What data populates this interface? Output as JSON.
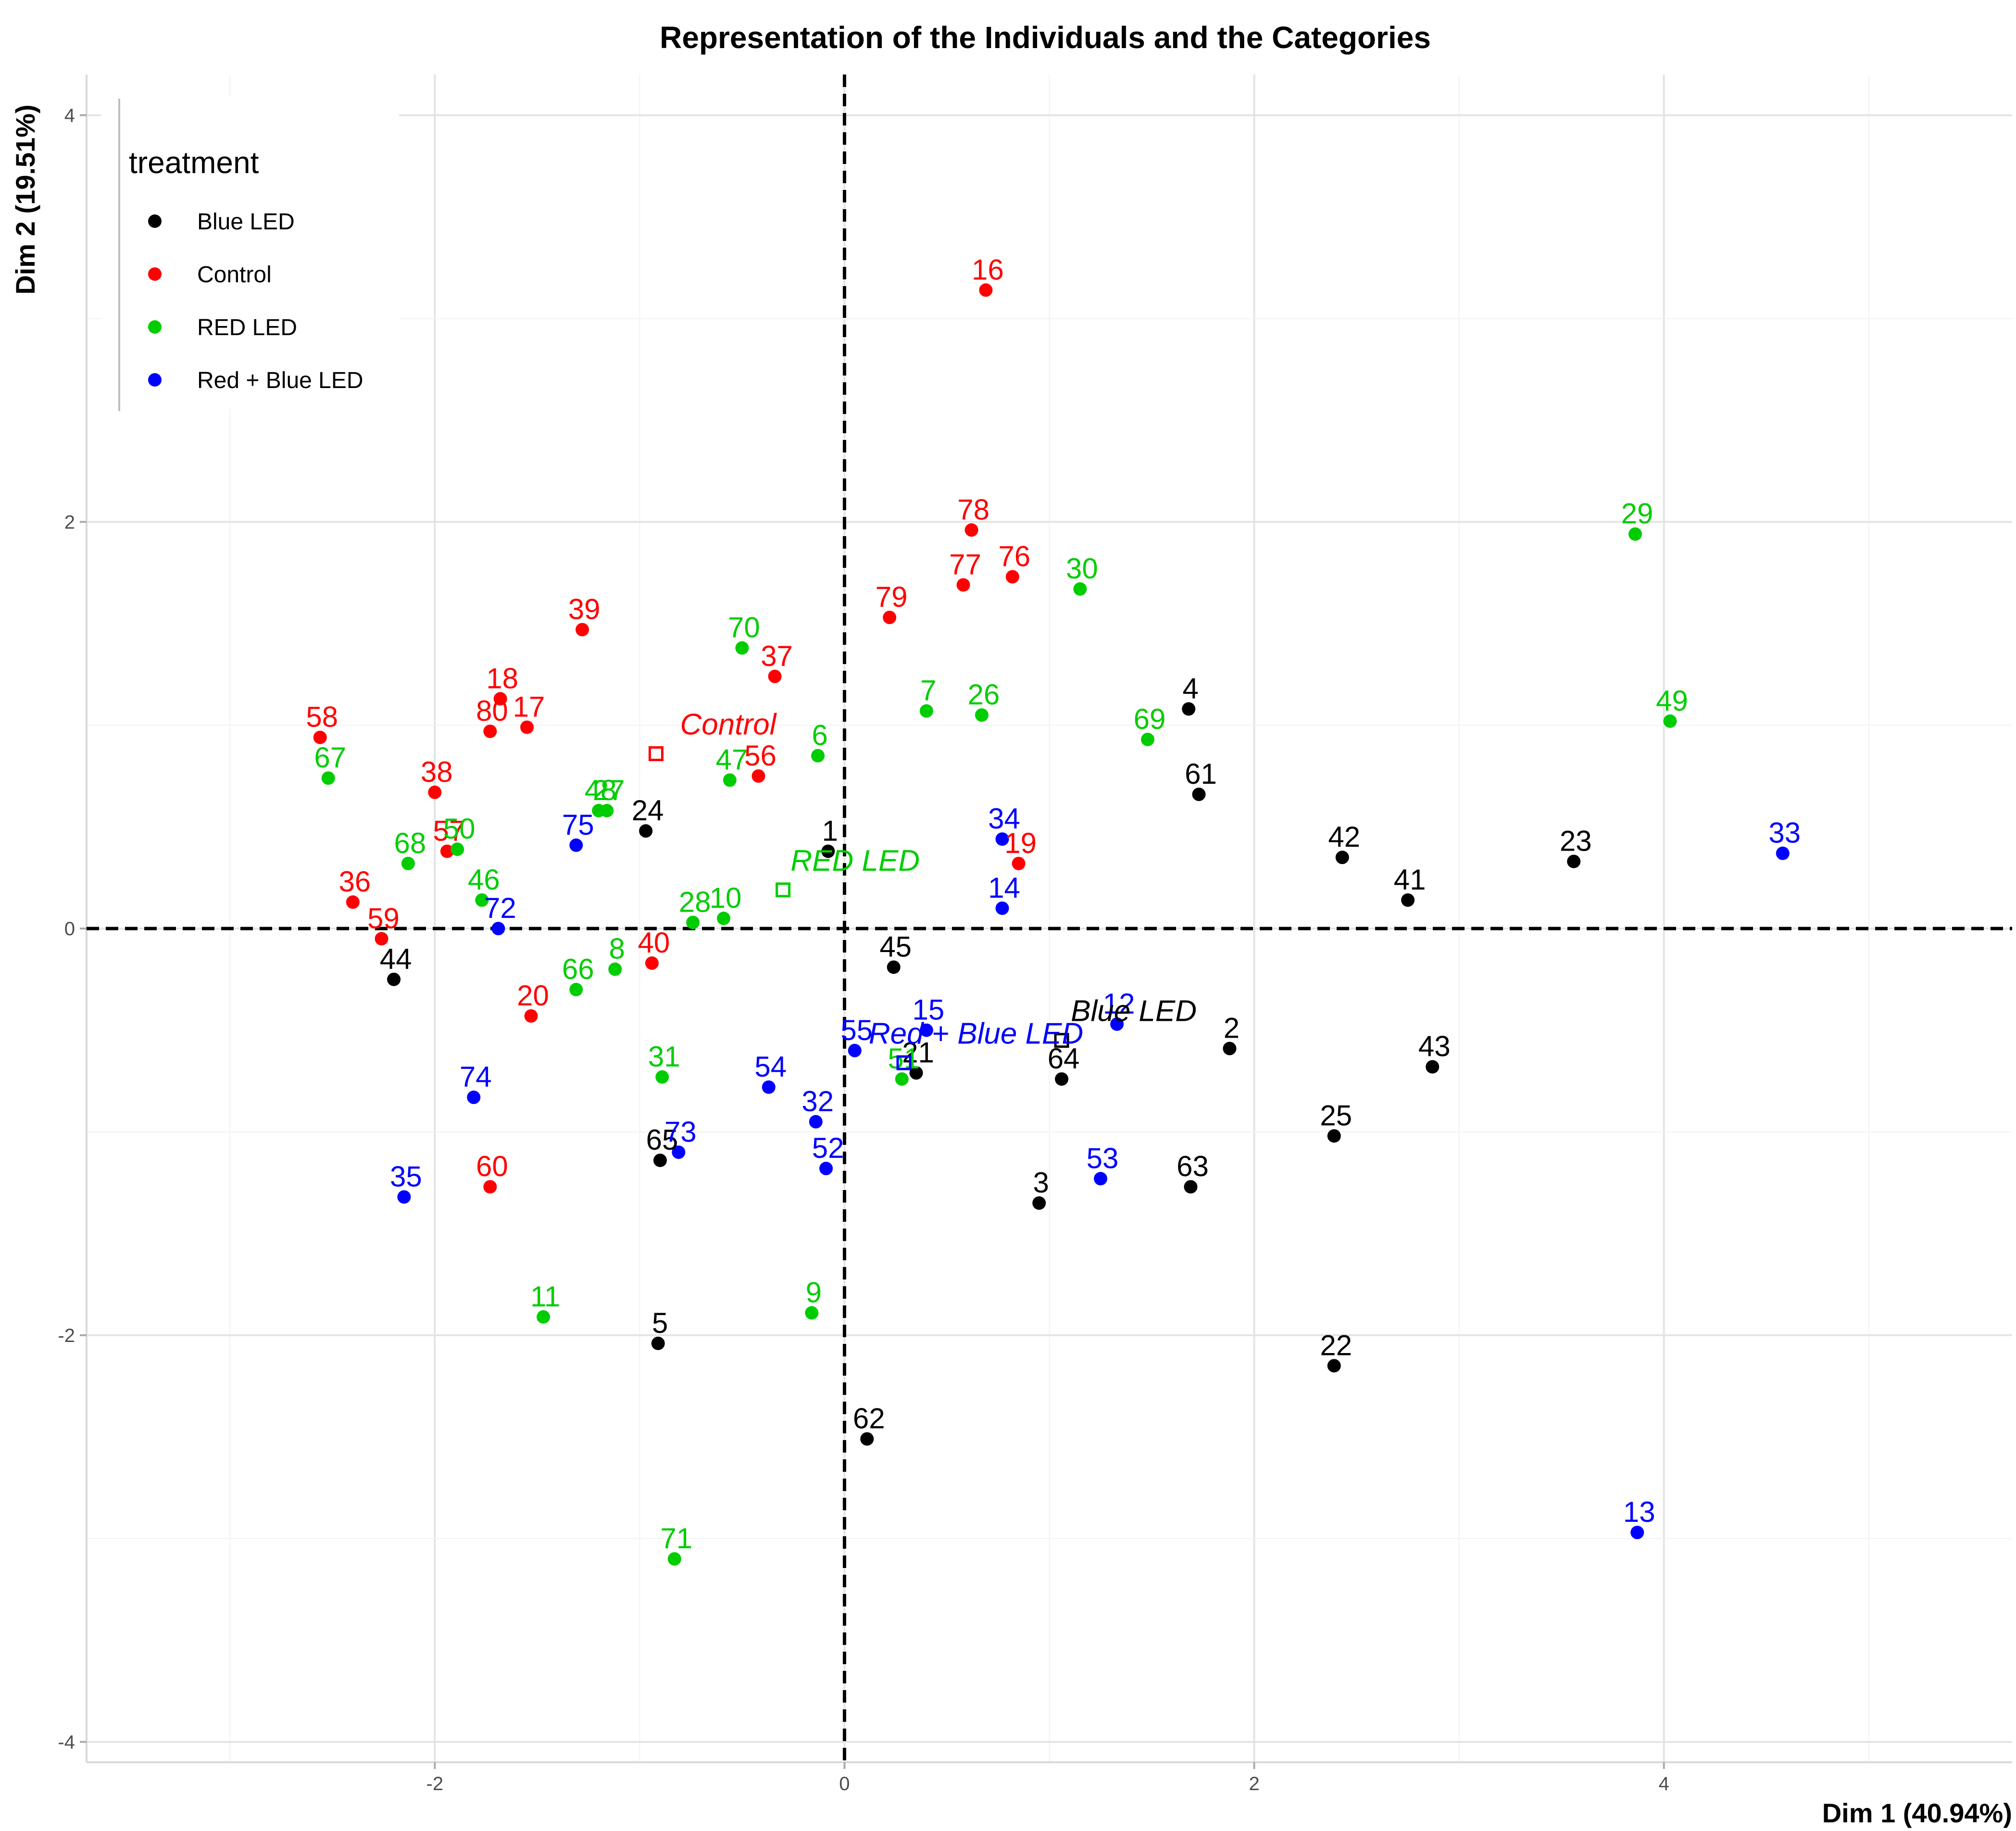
{
  "chart_data": {
    "type": "scatter",
    "title": "Representation of the Individuals and the Categories",
    "xlabel": "Dim 1 (40.94%)",
    "ylabel": "Dim 2 (19.51%)",
    "xlim": [
      -3.7,
      5.7
    ],
    "ylim": [
      -4.1,
      4.2
    ],
    "xticks": [
      -2,
      0,
      2,
      4
    ],
    "yticks": [
      -4,
      -2,
      0,
      2,
      4
    ],
    "xtick_labels": [
      "-2",
      "0",
      "2",
      "4"
    ],
    "ytick_labels": [
      "-4",
      "-2",
      "0",
      "2",
      "4"
    ],
    "grid": true,
    "reference_lines": "dashed lines at x=0 and y=0",
    "legend": {
      "title": "treatment",
      "placement": "top-left"
    },
    "colors": {
      "Blue LED": "#000000",
      "Control": "#ff0000",
      "RED LED": "#00cd00",
      "Red + Blue LED": "#0000ff"
    },
    "series": [
      {
        "name": "Blue LED",
        "points": [
          {
            "label": "1",
            "x": -0.08,
            "y": 0.38
          },
          {
            "label": "2",
            "x": 1.88,
            "y": -0.59
          },
          {
            "label": "3",
            "x": 0.95,
            "y": -1.35
          },
          {
            "label": "4",
            "x": 1.68,
            "y": 1.08
          },
          {
            "label": "5",
            "x": -0.91,
            "y": -2.04
          },
          {
            "label": "21",
            "x": 0.35,
            "y": -0.71
          },
          {
            "label": "22",
            "x": 2.39,
            "y": -2.15
          },
          {
            "label": "23",
            "x": 3.56,
            "y": 0.33
          },
          {
            "label": "24",
            "x": -0.97,
            "y": 0.48
          },
          {
            "label": "25",
            "x": 2.39,
            "y": -1.02
          },
          {
            "label": "41",
            "x": 2.75,
            "y": 0.14
          },
          {
            "label": "42",
            "x": 2.43,
            "y": 0.35
          },
          {
            "label": "43",
            "x": 2.87,
            "y": -0.68
          },
          {
            "label": "44",
            "x": -2.2,
            "y": -0.25
          },
          {
            "label": "45",
            "x": 0.24,
            "y": -0.19
          },
          {
            "label": "61",
            "x": 1.73,
            "y": 0.66
          },
          {
            "label": "62",
            "x": 0.11,
            "y": -2.51
          },
          {
            "label": "63",
            "x": 1.69,
            "y": -1.27
          },
          {
            "label": "64",
            "x": 1.06,
            "y": -0.74
          },
          {
            "label": "65",
            "x": -0.9,
            "y": -1.14
          }
        ]
      },
      {
        "name": "Control",
        "points": [
          {
            "label": "16",
            "x": 0.69,
            "y": 3.14
          },
          {
            "label": "17",
            "x": -1.55,
            "y": 0.99
          },
          {
            "label": "18",
            "x": -1.68,
            "y": 1.13
          },
          {
            "label": "19",
            "x": 0.85,
            "y": 0.32
          },
          {
            "label": "20",
            "x": -1.53,
            "y": -0.43
          },
          {
            "label": "36",
            "x": -2.4,
            "y": 0.13
          },
          {
            "label": "37",
            "x": -0.34,
            "y": 1.24
          },
          {
            "label": "38",
            "x": -2.0,
            "y": 0.67
          },
          {
            "label": "39",
            "x": -1.28,
            "y": 1.47
          },
          {
            "label": "40",
            "x": -0.94,
            "y": -0.17
          },
          {
            "label": "56",
            "x": -0.42,
            "y": 0.75
          },
          {
            "label": "57",
            "x": -1.94,
            "y": 0.38
          },
          {
            "label": "58",
            "x": -2.56,
            "y": 0.94
          },
          {
            "label": "59",
            "x": -2.26,
            "y": -0.05
          },
          {
            "label": "60",
            "x": -1.73,
            "y": -1.27
          },
          {
            "label": "76",
            "x": 0.82,
            "y": 1.73
          },
          {
            "label": "77",
            "x": 0.58,
            "y": 1.69
          },
          {
            "label": "78",
            "x": 0.62,
            "y": 1.96
          },
          {
            "label": "79",
            "x": 0.22,
            "y": 1.53
          },
          {
            "label": "80",
            "x": -1.73,
            "y": 0.97
          }
        ]
      },
      {
        "name": "RED LED",
        "points": [
          {
            "label": "6",
            "x": -0.13,
            "y": 0.85
          },
          {
            "label": "7",
            "x": 0.4,
            "y": 1.07
          },
          {
            "label": "8",
            "x": -1.12,
            "y": -0.2
          },
          {
            "label": "9",
            "x": -0.16,
            "y": -1.89
          },
          {
            "label": "10",
            "x": -0.59,
            "y": 0.05
          },
          {
            "label": "11",
            "x": -1.47,
            "y": -1.91
          },
          {
            "label": "26",
            "x": 0.67,
            "y": 1.05
          },
          {
            "label": "27",
            "x": -1.16,
            "y": 0.58
          },
          {
            "label": "28",
            "x": -0.74,
            "y": 0.03
          },
          {
            "label": "29",
            "x": 3.86,
            "y": 1.94
          },
          {
            "label": "30",
            "x": 1.15,
            "y": 1.67
          },
          {
            "label": "31",
            "x": -0.89,
            "y": -0.73
          },
          {
            "label": "46",
            "x": -1.77,
            "y": 0.14
          },
          {
            "label": "47",
            "x": -0.56,
            "y": 0.73
          },
          {
            "label": "48",
            "x": -1.2,
            "y": 0.58
          },
          {
            "label": "49",
            "x": 4.03,
            "y": 1.02
          },
          {
            "label": "50",
            "x": -1.89,
            "y": 0.39
          },
          {
            "label": "51",
            "x": 0.28,
            "y": -0.74
          },
          {
            "label": "66",
            "x": -1.31,
            "y": -0.3
          },
          {
            "label": "67",
            "x": -2.52,
            "y": 0.74
          },
          {
            "label": "68",
            "x": -2.13,
            "y": 0.32
          },
          {
            "label": "69",
            "x": 1.48,
            "y": 0.93
          },
          {
            "label": "70",
            "x": -0.5,
            "y": 1.38
          },
          {
            "label": "71",
            "x": -0.83,
            "y": -3.1
          }
        ]
      },
      {
        "name": "Red + Blue LED",
        "points": [
          {
            "label": "12",
            "x": 1.33,
            "y": -0.47
          },
          {
            "label": "13",
            "x": 3.87,
            "y": -2.97
          },
          {
            "label": "14",
            "x": 0.77,
            "y": 0.1
          },
          {
            "label": "15",
            "x": 0.4,
            "y": -0.5
          },
          {
            "label": "32",
            "x": -0.14,
            "y": -0.95
          },
          {
            "label": "33",
            "x": 4.58,
            "y": 0.37
          },
          {
            "label": "34",
            "x": 0.77,
            "y": 0.44
          },
          {
            "label": "35",
            "x": -2.15,
            "y": -1.32
          },
          {
            "label": "52",
            "x": -0.09,
            "y": -1.18
          },
          {
            "label": "53",
            "x": 1.25,
            "y": -1.23
          },
          {
            "label": "54",
            "x": -0.37,
            "y": -0.78
          },
          {
            "label": "55",
            "x": 0.05,
            "y": -0.6
          },
          {
            "label": "72",
            "x": -1.69,
            "y": 0.0
          },
          {
            "label": "73",
            "x": -0.81,
            "y": -1.1
          },
          {
            "label": "74",
            "x": -1.81,
            "y": -0.83
          },
          {
            "label": "75",
            "x": -1.31,
            "y": 0.41
          }
        ]
      }
    ],
    "category_points": [
      {
        "label": "Control",
        "series": "Control",
        "x": -0.92,
        "y": 0.86
      },
      {
        "label": "RED LED",
        "series": "RED LED",
        "x": -0.3,
        "y": 0.19
      },
      {
        "label": "Blue LED",
        "series": "Blue LED",
        "x": 1.06,
        "y": -0.55
      },
      {
        "label": "Red + Blue LED",
        "series": "Red + Blue LED",
        "x": 0.29,
        "y": -0.66
      }
    ]
  }
}
